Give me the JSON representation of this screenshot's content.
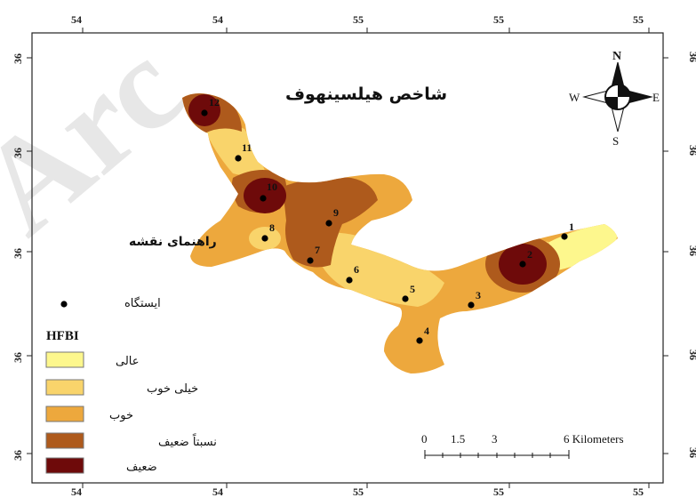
{
  "map": {
    "title": "شاخص هیلسینهوف",
    "watermark": "Arc"
  },
  "frame": {
    "top_ticks": [
      "54",
      "54",
      "55",
      "55",
      "55"
    ],
    "bottom_ticks": [
      "54",
      "54",
      "55",
      "55",
      "55"
    ],
    "left_ticks": [
      "36",
      "36",
      "36",
      "36",
      "36"
    ],
    "right_ticks": [
      "36",
      "36",
      "36",
      "36",
      "36"
    ]
  },
  "compass": {
    "north": "N",
    "south": "S",
    "east": "E",
    "west": "W"
  },
  "stations": [
    {
      "id": "1"
    },
    {
      "id": "2"
    },
    {
      "id": "3"
    },
    {
      "id": "4"
    },
    {
      "id": "5"
    },
    {
      "id": "6"
    },
    {
      "id": "7"
    },
    {
      "id": "8"
    },
    {
      "id": "9"
    },
    {
      "id": "10"
    },
    {
      "id": "11"
    },
    {
      "id": "12"
    }
  ],
  "legend": {
    "heading": "راهنمای نقشه",
    "station_label": "ایستگاه",
    "index_title": "HFBI",
    "classes": [
      {
        "label": "عالی",
        "color": "#fdf78d"
      },
      {
        "label": "خیلی خوب",
        "color": "#f9d46b"
      },
      {
        "label": "خوب",
        "color": "#eda83d"
      },
      {
        "label": "نسبتاً ضعیف",
        "color": "#ae5a1c"
      },
      {
        "label": "ضعیف",
        "color": "#6e0a0a"
      }
    ]
  },
  "scale_bar": {
    "labels": [
      "0",
      "1.5",
      "3",
      "6 Kilometers"
    ]
  }
}
